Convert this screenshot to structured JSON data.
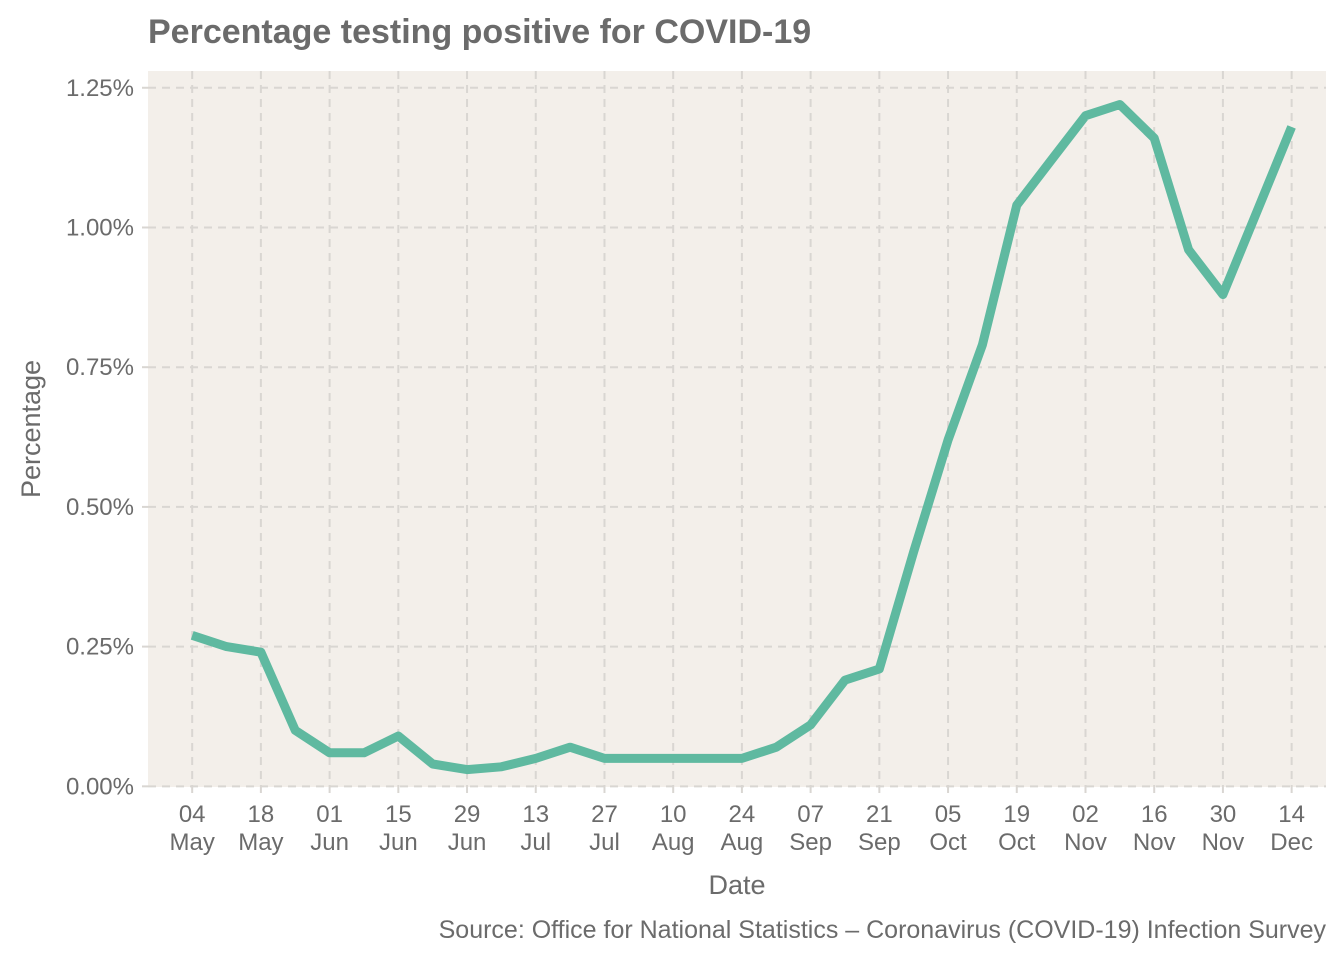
{
  "chart_data": {
    "type": "line",
    "title": "Percentage testing positive for COVID-19",
    "xlabel": "Date",
    "ylabel": "Percentage",
    "caption": "Source: Office for National Statistics – Coronavirus (COVID-19) Infection Survey",
    "colors": {
      "line": "#5fb9a0",
      "panel_background": "#f3efea",
      "grid": "#d9d6d2",
      "text": "#6b6b6b"
    },
    "grid": true,
    "x_range": [
      "2020-04-25",
      "2020-12-21"
    ],
    "ylim": [
      -0.0012,
      1.28
    ],
    "y_ticks": [
      {
        "value": 0,
        "label": "0.00%"
      },
      {
        "value": 0.25,
        "label": "0.25%"
      },
      {
        "value": 0.5,
        "label": "0.50%"
      },
      {
        "value": 0.75,
        "label": "0.75%"
      },
      {
        "value": 1.0,
        "label": "1.00%"
      },
      {
        "value": 1.25,
        "label": "1.25%"
      }
    ],
    "x_ticks": [
      {
        "date": "2020-05-04",
        "day": "04",
        "month": "May"
      },
      {
        "date": "2020-05-18",
        "day": "18",
        "month": "May"
      },
      {
        "date": "2020-06-01",
        "day": "01",
        "month": "Jun"
      },
      {
        "date": "2020-06-15",
        "day": "15",
        "month": "Jun"
      },
      {
        "date": "2020-06-29",
        "day": "29",
        "month": "Jun"
      },
      {
        "date": "2020-07-13",
        "day": "13",
        "month": "Jul"
      },
      {
        "date": "2020-07-27",
        "day": "27",
        "month": "Jul"
      },
      {
        "date": "2020-08-10",
        "day": "10",
        "month": "Aug"
      },
      {
        "date": "2020-08-24",
        "day": "24",
        "month": "Aug"
      },
      {
        "date": "2020-09-07",
        "day": "07",
        "month": "Sep"
      },
      {
        "date": "2020-09-21",
        "day": "21",
        "month": "Sep"
      },
      {
        "date": "2020-10-05",
        "day": "05",
        "month": "Oct"
      },
      {
        "date": "2020-10-19",
        "day": "19",
        "month": "Oct"
      },
      {
        "date": "2020-11-02",
        "day": "02",
        "month": "Nov"
      },
      {
        "date": "2020-11-16",
        "day": "16",
        "month": "Nov"
      },
      {
        "date": "2020-11-30",
        "day": "30",
        "month": "Nov"
      },
      {
        "date": "2020-12-14",
        "day": "14",
        "month": "Dec"
      }
    ],
    "series": [
      {
        "points": [
          {
            "x": "2020-05-04",
            "y": 0.27
          },
          {
            "x": "2020-05-11",
            "y": 0.25
          },
          {
            "x": "2020-05-18",
            "y": 0.24
          },
          {
            "x": "2020-05-25",
            "y": 0.1
          },
          {
            "x": "2020-06-01",
            "y": 0.06
          },
          {
            "x": "2020-06-08",
            "y": 0.06
          },
          {
            "x": "2020-06-15",
            "y": 0.09
          },
          {
            "x": "2020-06-22",
            "y": 0.04
          },
          {
            "x": "2020-06-29",
            "y": 0.03
          },
          {
            "x": "2020-07-06",
            "y": 0.035
          },
          {
            "x": "2020-07-13",
            "y": 0.05
          },
          {
            "x": "2020-07-20",
            "y": 0.07
          },
          {
            "x": "2020-07-27",
            "y": 0.05
          },
          {
            "x": "2020-08-03",
            "y": 0.05
          },
          {
            "x": "2020-08-10",
            "y": 0.05
          },
          {
            "x": "2020-08-17",
            "y": 0.05
          },
          {
            "x": "2020-08-24",
            "y": 0.05
          },
          {
            "x": "2020-08-31",
            "y": 0.07
          },
          {
            "x": "2020-09-07",
            "y": 0.11
          },
          {
            "x": "2020-09-14",
            "y": 0.19
          },
          {
            "x": "2020-09-21",
            "y": 0.21
          },
          {
            "x": "2020-09-28",
            "y": 0.42
          },
          {
            "x": "2020-10-05",
            "y": 0.62
          },
          {
            "x": "2020-10-12",
            "y": 0.79
          },
          {
            "x": "2020-10-19",
            "y": 1.04
          },
          {
            "x": "2020-10-26",
            "y": 1.12
          },
          {
            "x": "2020-11-02",
            "y": 1.2
          },
          {
            "x": "2020-11-09",
            "y": 1.22
          },
          {
            "x": "2020-11-16",
            "y": 1.16
          },
          {
            "x": "2020-11-23",
            "y": 0.96
          },
          {
            "x": "2020-11-30",
            "y": 0.88
          },
          {
            "x": "2020-12-07",
            "y": 1.03
          },
          {
            "x": "2020-12-14",
            "y": 1.18
          }
        ]
      }
    ]
  }
}
